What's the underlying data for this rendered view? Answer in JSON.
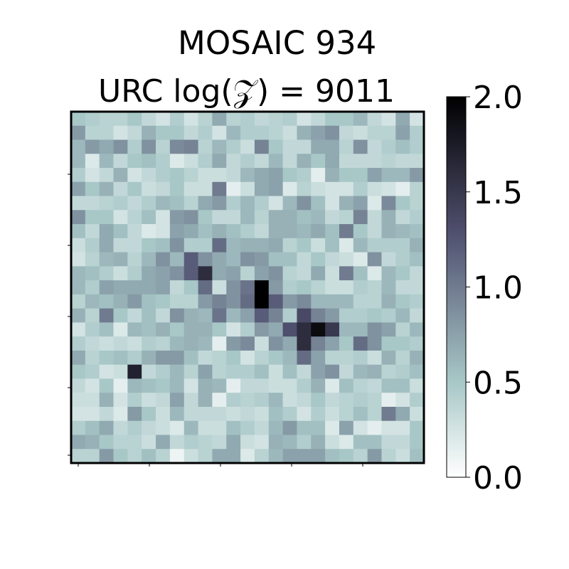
{
  "chart_data": {
    "type": "heatmap",
    "title": "MOSAIC 934",
    "subtitle": "URC log(𝒵) = 9011",
    "colormap": "bone_r",
    "vmin": 0.0,
    "vmax": 2.0,
    "colorbar_ticks": [
      "0.0",
      "0.5",
      "1.0",
      "1.5",
      "2.0"
    ],
    "grid": false,
    "values": [
      [
        0.5,
        0.45,
        0.4,
        0.4,
        0.5,
        0.35,
        0.25,
        0.45,
        0.25,
        0.4,
        0.7,
        0.4,
        0.45,
        0.35,
        0.4,
        0.45,
        0.25,
        0.35,
        0.5,
        0.5,
        0.6,
        0.35,
        0.25,
        0.7,
        0.25
      ],
      [
        0.8,
        0.4,
        0.4,
        0.25,
        0.35,
        0.65,
        0.5,
        0.5,
        0.35,
        0.45,
        0.25,
        0.6,
        0.45,
        0.45,
        0.4,
        0.3,
        0.65,
        0.75,
        0.85,
        0.35,
        0.3,
        0.4,
        0.4,
        0.75,
        0.45
      ],
      [
        0.6,
        0.8,
        0.7,
        0.85,
        0.45,
        0.85,
        0.4,
        0.9,
        0.95,
        0.4,
        0.6,
        0.45,
        0.3,
        0.95,
        0.5,
        0.35,
        0.35,
        0.7,
        0.7,
        0.4,
        0.85,
        0.35,
        0.45,
        0.55,
        0.45
      ],
      [
        0.6,
        0.2,
        0.6,
        0.35,
        0.5,
        0.55,
        0.45,
        0.2,
        0.3,
        0.45,
        0.7,
        0.35,
        0.45,
        0.35,
        0.6,
        0.35,
        0.65,
        0.5,
        0.7,
        0.35,
        0.35,
        0.35,
        0.4,
        0.35,
        0.35
      ],
      [
        0.45,
        0.25,
        0.35,
        0.65,
        0.25,
        0.35,
        0.45,
        0.5,
        0.4,
        0.3,
        0.3,
        0.35,
        0.6,
        0.7,
        0.75,
        0.5,
        0.45,
        0.15,
        0.65,
        0.5,
        0.5,
        0.75,
        0.6,
        0.6,
        0.8
      ],
      [
        0.75,
        0.5,
        0.65,
        0.35,
        0.5,
        0.3,
        0.35,
        0.5,
        0.3,
        0.3,
        1.0,
        0.15,
        0.3,
        0.7,
        0.75,
        0.2,
        0.4,
        0.3,
        0.25,
        0.25,
        0.45,
        0.3,
        0.25,
        0.15,
        0.4
      ],
      [
        0.35,
        0.35,
        0.4,
        0.45,
        0.35,
        0.45,
        0.6,
        0.55,
        0.4,
        0.7,
        0.8,
        0.45,
        0.6,
        0.45,
        0.25,
        0.6,
        0.85,
        0.55,
        0.25,
        0.65,
        0.75,
        0.2,
        0.9,
        0.5,
        0.4
      ],
      [
        0.85,
        0.5,
        0.5,
        0.25,
        0.4,
        0.55,
        0.25,
        0.8,
        0.85,
        0.5,
        0.35,
        0.35,
        0.6,
        0.4,
        0.65,
        0.65,
        0.55,
        0.6,
        0.35,
        0.4,
        0.95,
        0.35,
        0.65,
        0.35,
        0.45
      ],
      [
        0.55,
        0.35,
        0.7,
        0.55,
        0.35,
        0.2,
        0.25,
        0.75,
        0.7,
        0.55,
        0.65,
        0.55,
        0.45,
        0.35,
        0.65,
        0.65,
        0.6,
        0.7,
        0.55,
        1.0,
        0.5,
        0.35,
        0.65,
        0.6,
        0.55
      ],
      [
        0.3,
        0.45,
        0.7,
        0.35,
        0.35,
        0.5,
        0.55,
        0.85,
        0.45,
        0.45,
        1.1,
        0.6,
        0.65,
        0.65,
        0.7,
        0.4,
        0.5,
        0.3,
        0.55,
        0.2,
        0.6,
        0.45,
        0.45,
        0.45,
        0.65
      ],
      [
        0.25,
        0.4,
        0.6,
        0.65,
        0.4,
        0.6,
        0.85,
        0.6,
        1.2,
        0.85,
        0.7,
        0.6,
        0.85,
        0.8,
        0.55,
        0.55,
        0.35,
        0.5,
        0.35,
        0.3,
        0.2,
        0.85,
        0.35,
        0.45,
        0.55
      ],
      [
        0.6,
        0.55,
        0.45,
        0.3,
        0.45,
        0.7,
        0.75,
        0.85,
        1.2,
        1.6,
        0.7,
        0.75,
        0.4,
        0.75,
        0.85,
        0.4,
        0.35,
        0.7,
        0.3,
        1.0,
        0.55,
        0.2,
        0.6,
        0.5,
        0.35
      ],
      [
        0.6,
        0.45,
        0.75,
        0.7,
        0.7,
        0.7,
        0.75,
        0.35,
        0.5,
        1.1,
        0.3,
        0.85,
        1.05,
        2.0,
        0.8,
        0.45,
        0.5,
        0.4,
        0.3,
        0.3,
        0.45,
        0.4,
        0.6,
        0.35,
        0.35
      ],
      [
        0.4,
        0.6,
        0.55,
        0.65,
        0.8,
        0.55,
        0.5,
        0.4,
        0.4,
        0.8,
        0.95,
        0.85,
        1.1,
        2.0,
        1.2,
        0.8,
        0.9,
        0.6,
        0.6,
        0.6,
        0.4,
        0.4,
        0.65,
        0.5,
        0.45
      ],
      [
        0.65,
        0.4,
        1.0,
        0.5,
        0.35,
        0.55,
        0.35,
        0.85,
        0.65,
        0.6,
        1.05,
        0.6,
        0.75,
        1.2,
        0.95,
        0.45,
        1.35,
        0.95,
        0.8,
        0.45,
        0.45,
        0.5,
        0.45,
        0.6,
        0.35
      ],
      [
        0.25,
        0.45,
        0.55,
        0.2,
        0.6,
        0.55,
        0.65,
        0.5,
        0.65,
        0.65,
        0.5,
        0.25,
        0.45,
        0.8,
        0.7,
        1.3,
        1.6,
        1.9,
        1.5,
        0.6,
        0.6,
        0.85,
        0.75,
        0.4,
        0.6
      ],
      [
        0.45,
        0.35,
        0.3,
        0.35,
        0.3,
        0.45,
        0.4,
        0.6,
        0.65,
        0.6,
        0.15,
        0.8,
        0.9,
        0.3,
        0.85,
        0.7,
        1.6,
        0.95,
        0.75,
        0.5,
        1.1,
        0.85,
        0.5,
        0.5,
        0.45
      ],
      [
        0.7,
        0.4,
        0.5,
        0.55,
        0.45,
        0.65,
        0.8,
        0.8,
        0.55,
        0.35,
        0.4,
        0.5,
        0.25,
        0.4,
        0.5,
        0.6,
        1.1,
        0.75,
        0.4,
        0.4,
        0.45,
        0.3,
        0.65,
        0.4,
        0.65
      ],
      [
        0.5,
        0.45,
        0.25,
        0.3,
        1.7,
        0.35,
        0.45,
        0.6,
        0.4,
        0.75,
        0.4,
        0.45,
        0.45,
        0.55,
        0.3,
        0.55,
        0.35,
        0.75,
        0.85,
        0.35,
        0.6,
        0.65,
        0.4,
        0.45,
        0.55
      ],
      [
        0.35,
        0.25,
        0.5,
        0.15,
        0.6,
        0.55,
        0.5,
        0.6,
        0.25,
        0.65,
        0.6,
        0.15,
        0.35,
        0.35,
        0.3,
        0.3,
        0.45,
        0.65,
        0.2,
        0.55,
        0.4,
        0.35,
        0.55,
        0.55,
        0.3
      ],
      [
        0.3,
        0.3,
        0.65,
        0.25,
        0.45,
        0.3,
        0.35,
        0.75,
        0.35,
        0.65,
        0.15,
        0.45,
        0.4,
        0.45,
        0.6,
        0.3,
        0.35,
        0.5,
        0.35,
        0.4,
        0.45,
        0.4,
        0.15,
        0.25,
        0.45
      ],
      [
        0.25,
        0.25,
        0.35,
        0.2,
        0.8,
        0.5,
        0.3,
        0.6,
        0.35,
        0.35,
        0.35,
        0.3,
        0.35,
        0.3,
        0.55,
        0.45,
        0.25,
        0.45,
        0.3,
        0.4,
        0.55,
        0.4,
        1.0,
        0.7,
        0.3
      ],
      [
        0.45,
        0.55,
        0.7,
        0.35,
        0.45,
        0.35,
        0.3,
        0.2,
        0.6,
        0.3,
        0.3,
        0.55,
        0.45,
        0.35,
        0.6,
        0.8,
        0.55,
        0.55,
        0.2,
        0.75,
        0.25,
        0.15,
        0.25,
        0.25,
        0.5
      ],
      [
        0.7,
        0.65,
        0.5,
        0.4,
        0.4,
        0.3,
        0.7,
        0.35,
        0.45,
        0.4,
        0.35,
        0.7,
        0.3,
        0.25,
        0.65,
        0.6,
        0.45,
        0.65,
        0.3,
        0.2,
        0.55,
        0.55,
        0.35,
        0.35,
        0.5
      ],
      [
        0.4,
        0.4,
        0.8,
        0.5,
        0.4,
        0.55,
        0.4,
        0.1,
        0.3,
        0.4,
        0.7,
        0.7,
        0.2,
        0.4,
        0.6,
        0.75,
        0.75,
        0.75,
        0.55,
        0.5,
        0.4,
        0.8,
        0.4,
        0.3,
        0.55
      ]
    ]
  }
}
